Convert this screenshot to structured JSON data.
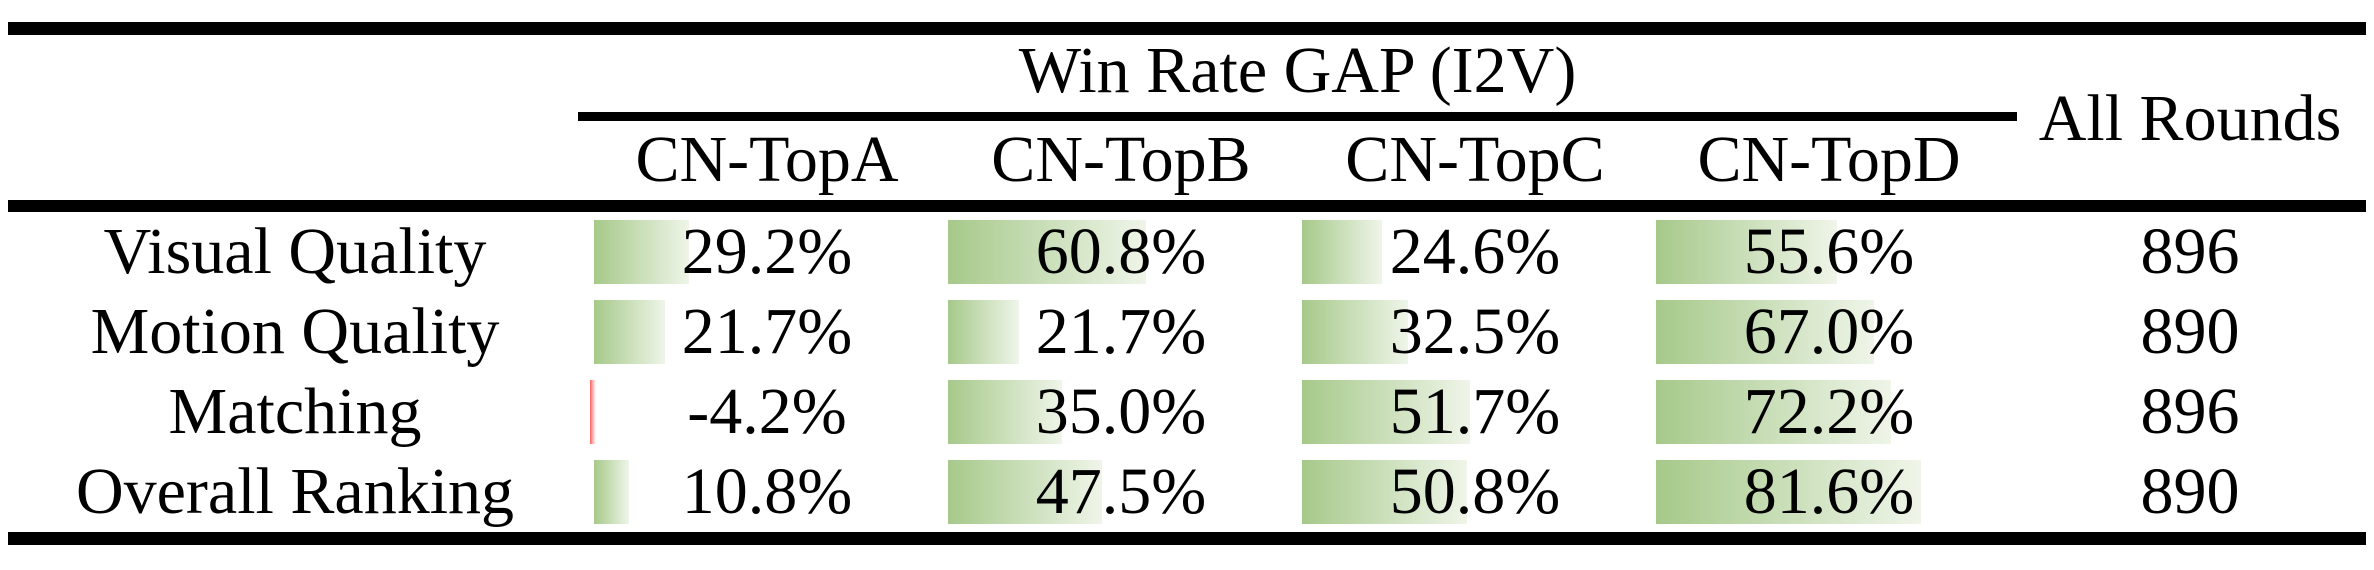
{
  "table": {
    "header": {
      "group_title": "Win Rate GAP (I2V)",
      "all_rounds_label": "All Rounds",
      "columns": [
        "CN-TopA",
        "CN-TopB",
        "CN-TopC",
        "CN-TopD"
      ]
    },
    "rows": [
      {
        "metric": "Visual Quality",
        "values": [
          {
            "value": 29.2,
            "label": "29.2%"
          },
          {
            "value": 60.8,
            "label": "60.8%"
          },
          {
            "value": 24.6,
            "label": "24.6%"
          },
          {
            "value": 55.6,
            "label": "55.6%"
          }
        ],
        "all_rounds": "896"
      },
      {
        "metric": "Motion Quality",
        "values": [
          {
            "value": 21.7,
            "label": "21.7%"
          },
          {
            "value": 21.7,
            "label": "21.7%"
          },
          {
            "value": 32.5,
            "label": "32.5%"
          },
          {
            "value": 67.0,
            "label": "67.0%"
          }
        ],
        "all_rounds": "890"
      },
      {
        "metric": "Matching",
        "values": [
          {
            "value": -4.2,
            "label": "-4.2%"
          },
          {
            "value": 35.0,
            "label": "35.0%"
          },
          {
            "value": 51.7,
            "label": "51.7%"
          },
          {
            "value": 72.2,
            "label": "72.2%"
          }
        ],
        "all_rounds": "896"
      },
      {
        "metric": "Overall Ranking",
        "values": [
          {
            "value": 10.8,
            "label": "10.8%"
          },
          {
            "value": 47.5,
            "label": "47.5%"
          },
          {
            "value": 50.8,
            "label": "50.8%"
          },
          {
            "value": 81.6,
            "label": "81.6%"
          }
        ],
        "all_rounds": "890"
      }
    ],
    "colors": {
      "positive_bar_start": "#a6c98a",
      "positive_bar_end": "#eff5e9",
      "negative_bar_start": "#ff5f5f",
      "negative_bar_end": "#ffd9d9",
      "rule_color": "#000000"
    }
  },
  "chart_data": {
    "type": "table",
    "title": "Win Rate GAP (I2V)",
    "categories": [
      "Visual Quality",
      "Motion Quality",
      "Matching",
      "Overall Ranking"
    ],
    "series": [
      {
        "name": "CN-TopA",
        "values": [
          29.2,
          21.7,
          -4.2,
          10.8
        ]
      },
      {
        "name": "CN-TopB",
        "values": [
          60.8,
          21.7,
          35.0,
          47.5
        ]
      },
      {
        "name": "CN-TopC",
        "values": [
          24.6,
          32.5,
          51.7,
          50.8
        ]
      },
      {
        "name": "CN-TopD",
        "values": [
          55.6,
          67.0,
          72.2,
          81.6
        ]
      }
    ],
    "extra_column": {
      "name": "All Rounds",
      "values": [
        896,
        890,
        896,
        890
      ]
    },
    "units": "%",
    "bar_style": "in-cell gradient data bars, green positive, red negative"
  }
}
